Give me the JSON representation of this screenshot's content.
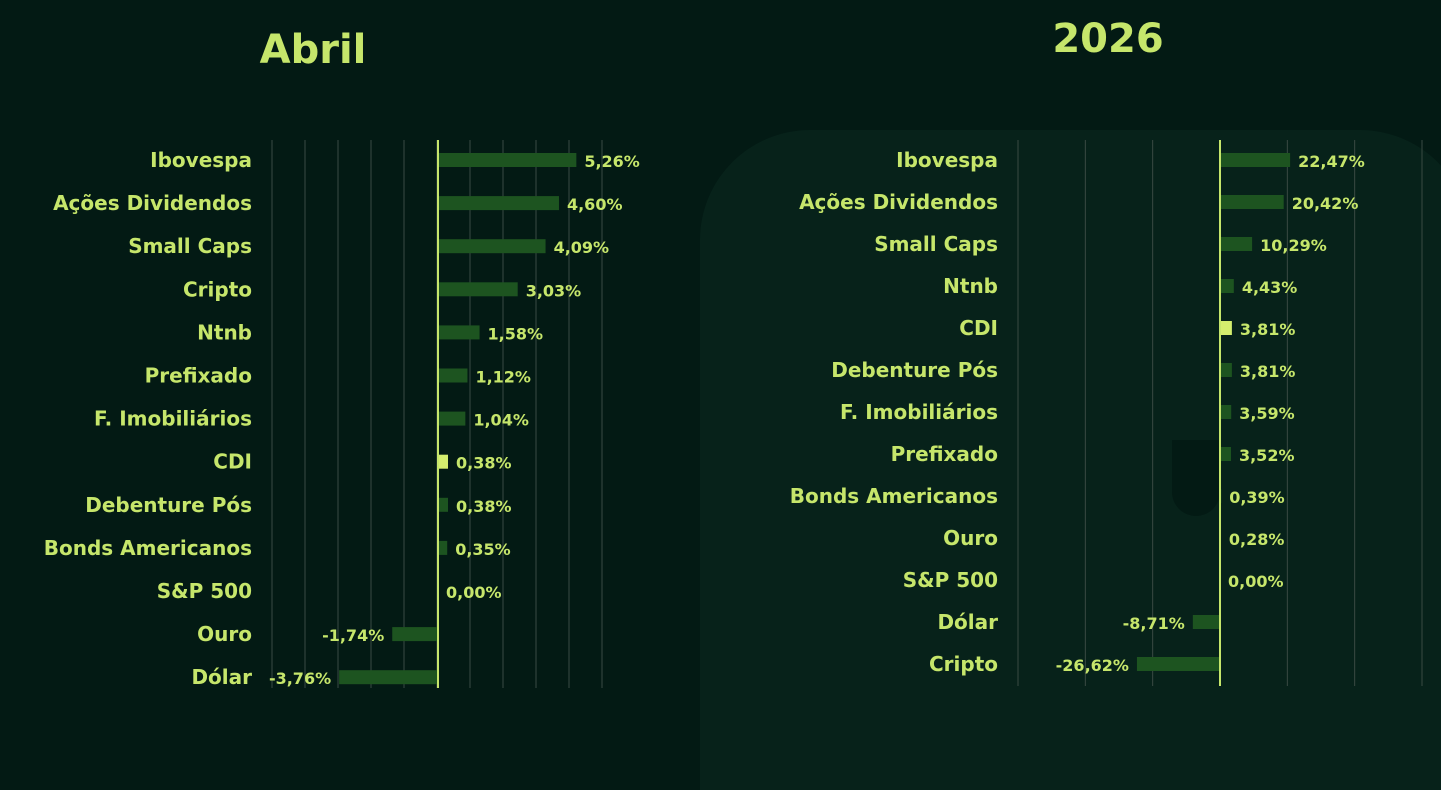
{
  "colors": {
    "accent": "#c6e66b",
    "bar": "#1d5420",
    "highlight": "#d4ee6e",
    "grid": "#3a4a43"
  },
  "chart_data": [
    {
      "type": "bar",
      "orientation": "horizontal",
      "title": "Abril",
      "xlim": [
        -5,
        5
      ],
      "categories": [
        "Ibovespa",
        "Ações Dividendos",
        "Small Caps",
        "Cripto",
        "Ntnb",
        "Prefixado",
        "F. Imobiliários",
        "CDI",
        "Debenture Pós",
        "Bonds Americanos",
        "S&P 500",
        "Ouro",
        "Dólar"
      ],
      "values": [
        5.26,
        4.6,
        4.09,
        3.03,
        1.58,
        1.12,
        1.04,
        0.38,
        0.38,
        0.35,
        0.0,
        -1.74,
        -3.76
      ],
      "labels": [
        "5,26%",
        "4,60%",
        "4,09%",
        "3,03%",
        "1,58%",
        "1,12%",
        "1,04%",
        "0,38%",
        "0,38%",
        "0,35%",
        "0,00%",
        "-1,74%",
        "-3,76%"
      ],
      "highlight": "CDI"
    },
    {
      "type": "bar",
      "orientation": "horizontal",
      "title": "2026",
      "xlim": [
        -30,
        30
      ],
      "categories": [
        "Ibovespa",
        "Ações Dividendos",
        "Small Caps",
        "Ntnb",
        "CDI",
        "Debenture Pós",
        "F. Imobiliários",
        "Prefixado",
        "Bonds Americanos",
        "Ouro",
        "S&P 500",
        "Dólar",
        "Cripto"
      ],
      "values": [
        22.47,
        20.42,
        10.29,
        4.43,
        3.81,
        3.81,
        3.59,
        3.52,
        0.39,
        0.28,
        0.0,
        -8.71,
        -26.62
      ],
      "labels": [
        "22,47%",
        "20,42%",
        "10,29%",
        "4,43%",
        "3,81%",
        "3,81%",
        "3,59%",
        "3,52%",
        "0,39%",
        "0,28%",
        "0,00%",
        "-8,71%",
        "-26,62%"
      ],
      "highlight": "CDI"
    }
  ]
}
